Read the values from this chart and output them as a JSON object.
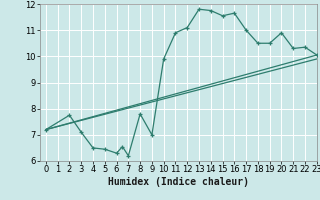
{
  "title": "",
  "xlabel": "Humidex (Indice chaleur)",
  "xlim": [
    -0.5,
    23
  ],
  "ylim": [
    6,
    12
  ],
  "xticks": [
    0,
    1,
    2,
    3,
    4,
    5,
    6,
    7,
    8,
    9,
    10,
    11,
    12,
    13,
    14,
    15,
    16,
    17,
    18,
    19,
    20,
    21,
    22,
    23
  ],
  "yticks": [
    6,
    7,
    8,
    9,
    10,
    11,
    12
  ],
  "bg_color": "#cce8e8",
  "line_color": "#2e7d6e",
  "grid_color": "#ffffff",
  "curve1_x": [
    0,
    2,
    3,
    4,
    5,
    6,
    6.5,
    7,
    8,
    9,
    10,
    11,
    12,
    13,
    14,
    15,
    16,
    17,
    18,
    19,
    20,
    21,
    22,
    23
  ],
  "curve1_y": [
    7.2,
    7.75,
    7.1,
    6.5,
    6.45,
    6.3,
    6.55,
    6.2,
    7.8,
    7.0,
    9.9,
    10.9,
    11.1,
    11.8,
    11.75,
    11.55,
    11.65,
    11.0,
    10.5,
    10.5,
    10.9,
    10.3,
    10.35,
    10.05
  ],
  "curve2_x": [
    0,
    23
  ],
  "curve2_y": [
    7.2,
    10.05
  ],
  "curve3_x": [
    0,
    23
  ],
  "curve3_y": [
    7.2,
    9.9
  ],
  "xlabel_fontsize": 7,
  "tick_fontsize": 6
}
